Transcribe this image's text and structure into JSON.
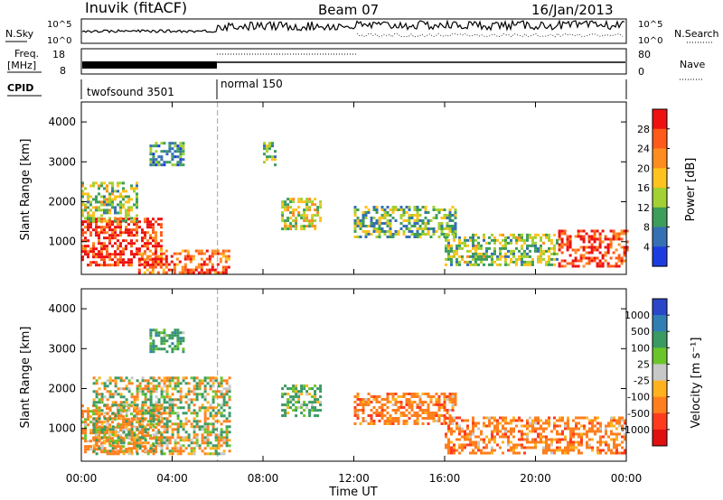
{
  "header": {
    "station": "Inuvik (fitACF)",
    "beam": "Beam 07",
    "date": "16/Jan/2013"
  },
  "status_panels": {
    "nsky_label": "N.Sky",
    "nsky_ticks": [
      "10^5",
      "10^0"
    ],
    "nsearch_label": "N.Search",
    "nsearch_ticks": [
      "10^5",
      "10^0"
    ],
    "freq_label_line1": "Freq.",
    "freq_label_line2": "[MHz]",
    "freq_ticks": [
      "18",
      "8"
    ],
    "nave_label": "Nave",
    "nave_ticks": [
      "80",
      "0"
    ],
    "cpid_label": "CPID",
    "cpid_modes": [
      {
        "name": "twofsound 3501",
        "start_hour": 0,
        "end_hour": 6
      },
      {
        "name": "normal 150",
        "start_hour": 6,
        "end_hour": 24
      }
    ]
  },
  "power_colorbar": {
    "title": "Power [dB]",
    "ticks": [
      "28",
      "24",
      "20",
      "16",
      "12",
      "8",
      "4"
    ],
    "colors": [
      "#ee1111",
      "#ff5a1a",
      "#ff8c1e",
      "#ffc21e",
      "#a3d032",
      "#3c9e5a",
      "#356fb4",
      "#1d3ce0"
    ]
  },
  "velocity_colorbar": {
    "title": "Velocity [m s⁻¹]",
    "ticks": [
      "1000",
      "500",
      "100",
      "25",
      "-25",
      "-100",
      "-500",
      "-1000"
    ],
    "colors": [
      "#2a47c8",
      "#2f7fb3",
      "#3a9a62",
      "#6ac52a",
      "#c8c8c8",
      "#ffb21e",
      "#ff7f1e",
      "#ff3b1e",
      "#e01010"
    ]
  },
  "chart_data": [
    {
      "type": "heatmap",
      "ylabel": "Slant Range [km]",
      "xlabel": "Time UT",
      "x_ticks": [
        "00:00",
        "04:00",
        "08:00",
        "12:00",
        "16:00",
        "20:00",
        "00:00"
      ],
      "y_ticks": [
        "1000",
        "2000",
        "3000",
        "4000"
      ],
      "xlim_hours": [
        0,
        24
      ],
      "ylim_km": [
        180,
        4500
      ],
      "colorbar": "Power [dB]",
      "regions": [
        {
          "t0": 0.0,
          "t1": 3.5,
          "r0": 400,
          "r1": 1600,
          "value": 26
        },
        {
          "t0": 2.5,
          "t1": 6.5,
          "r0": 250,
          "r1": 800,
          "value": 24
        },
        {
          "t0": 0.0,
          "t1": 2.5,
          "r0": 1500,
          "r1": 2500,
          "value": 12
        },
        {
          "t0": 3.0,
          "t1": 4.5,
          "r0": 2900,
          "r1": 3500,
          "value": 6
        },
        {
          "t0": 8.8,
          "t1": 10.5,
          "r0": 1300,
          "r1": 2100,
          "value": 14
        },
        {
          "t0": 8.0,
          "t1": 8.5,
          "r0": 2900,
          "r1": 3500,
          "value": 10
        },
        {
          "t0": 12.0,
          "t1": 16.5,
          "r0": 1100,
          "r1": 1900,
          "value": 10
        },
        {
          "t0": 16.0,
          "t1": 21.0,
          "r0": 400,
          "r1": 1200,
          "value": 12
        },
        {
          "t0": 21.0,
          "t1": 24.0,
          "r0": 400,
          "r1": 1300,
          "value": 26
        }
      ]
    },
    {
      "type": "heatmap",
      "ylabel": "Slant Range [km]",
      "xlabel": "Time UT",
      "x_ticks": [
        "00:00",
        "04:00",
        "08:00",
        "12:00",
        "16:00",
        "20:00",
        "00:00"
      ],
      "y_ticks": [
        "1000",
        "2000",
        "3000",
        "4000"
      ],
      "xlim_hours": [
        0,
        24
      ],
      "ylim_km": [
        180,
        4500
      ],
      "colorbar": "Velocity [m s⁻¹]",
      "regions": [
        {
          "t0": 0.0,
          "t1": 3.5,
          "r0": 400,
          "r1": 1600,
          "value": -200
        },
        {
          "t0": 0.5,
          "t1": 6.5,
          "r0": 350,
          "r1": 2300,
          "value": 0
        },
        {
          "t0": 3.0,
          "t1": 4.5,
          "r0": 2900,
          "r1": 3500,
          "value": 300
        },
        {
          "t0": 8.8,
          "t1": 10.5,
          "r0": 1300,
          "r1": 2100,
          "value": 200
        },
        {
          "t0": 12.0,
          "t1": 16.5,
          "r0": 1100,
          "r1": 1900,
          "value": -300
        },
        {
          "t0": 16.0,
          "t1": 24.0,
          "r0": 400,
          "r1": 1300,
          "value": -300
        }
      ]
    }
  ]
}
